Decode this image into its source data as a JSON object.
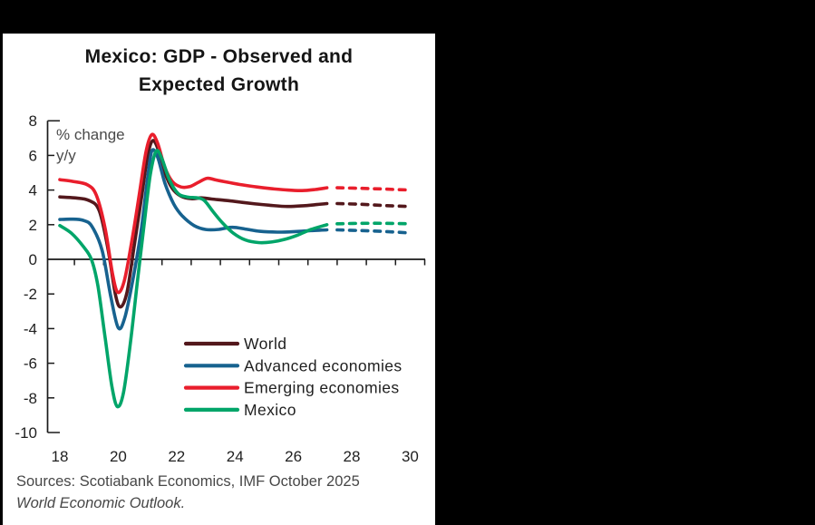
{
  "window": {
    "background": "#000000",
    "panel_background": "#ffffff"
  },
  "header": {
    "title_line1": "Mexico: GDP - Observed and",
    "title_line2": "Expected Growth"
  },
  "axis_note": {
    "line1": "% change",
    "line2": "y/y"
  },
  "footer": {
    "source_line1": "Sources: Scotiabank Economics, IMF October 2025",
    "source_line2": "World Economic Outlook."
  },
  "chart_data": {
    "type": "line",
    "title": "Mexico: GDP - Observed and Expected Growth",
    "ylabel": "% change y/y",
    "xlabel": "",
    "ylim": [
      -10,
      8
    ],
    "xlim": [
      18,
      30.5
    ],
    "yticks": [
      8,
      6,
      4,
      2,
      0,
      -2,
      -4,
      -6,
      -8,
      -10
    ],
    "xticks": [
      18,
      20,
      22,
      24,
      26,
      28,
      30
    ],
    "grid": false,
    "legend_position": "inside-lower-right",
    "axis_color": "#1a1a1a",
    "series": [
      {
        "name": "World",
        "color": "#53181C",
        "solid": [
          [
            18,
            3.6
          ],
          [
            18.5,
            3.55
          ],
          [
            19,
            3.4
          ],
          [
            19.35,
            2.8
          ],
          [
            19.65,
            0.6
          ],
          [
            19.9,
            -2.0
          ],
          [
            20.08,
            -2.75
          ],
          [
            20.3,
            -1.9
          ],
          [
            20.55,
            0.8
          ],
          [
            20.8,
            3.6
          ],
          [
            21.0,
            5.9
          ],
          [
            21.18,
            6.85
          ],
          [
            21.38,
            6.3
          ],
          [
            21.6,
            5.0
          ],
          [
            21.85,
            4.1
          ],
          [
            22.15,
            3.65
          ],
          [
            22.5,
            3.5
          ],
          [
            22.85,
            3.55
          ],
          [
            23.2,
            3.48
          ],
          [
            23.7,
            3.4
          ],
          [
            24.2,
            3.3
          ],
          [
            24.7,
            3.2
          ],
          [
            25.2,
            3.12
          ],
          [
            25.8,
            3.05
          ],
          [
            26.4,
            3.1
          ],
          [
            26.8,
            3.16
          ],
          [
            27.15,
            3.22
          ]
        ],
        "dashed": [
          [
            27.5,
            3.22
          ],
          [
            28.3,
            3.18
          ],
          [
            29.2,
            3.1
          ],
          [
            30,
            3.05
          ]
        ]
      },
      {
        "name": "Advanced economies",
        "color": "#17628F",
        "solid": [
          [
            18,
            2.3
          ],
          [
            18.4,
            2.32
          ],
          [
            18.8,
            2.25
          ],
          [
            19.1,
            1.9
          ],
          [
            19.45,
            0.5
          ],
          [
            19.75,
            -2.2
          ],
          [
            20.0,
            -3.95
          ],
          [
            20.22,
            -3.4
          ],
          [
            20.5,
            -1.2
          ],
          [
            20.78,
            1.6
          ],
          [
            21.0,
            4.6
          ],
          [
            21.15,
            6.25
          ],
          [
            21.35,
            5.9
          ],
          [
            21.6,
            4.4
          ],
          [
            21.9,
            3.2
          ],
          [
            22.2,
            2.5
          ],
          [
            22.6,
            1.95
          ],
          [
            23.0,
            1.72
          ],
          [
            23.45,
            1.73
          ],
          [
            23.9,
            1.85
          ],
          [
            24.35,
            1.75
          ],
          [
            24.85,
            1.62
          ],
          [
            25.45,
            1.57
          ],
          [
            26.05,
            1.6
          ],
          [
            26.6,
            1.66
          ],
          [
            27.15,
            1.7
          ]
        ],
        "dashed": [
          [
            27.5,
            1.7
          ],
          [
            28.3,
            1.66
          ],
          [
            29.2,
            1.6
          ],
          [
            30,
            1.52
          ]
        ]
      },
      {
        "name": "Emerging economies",
        "color": "#E91E2C",
        "solid": [
          [
            18,
            4.6
          ],
          [
            18.45,
            4.5
          ],
          [
            18.95,
            4.3
          ],
          [
            19.25,
            3.7
          ],
          [
            19.55,
            1.8
          ],
          [
            19.8,
            -0.8
          ],
          [
            19.98,
            -1.9
          ],
          [
            20.2,
            -1.3
          ],
          [
            20.45,
            0.9
          ],
          [
            20.7,
            3.5
          ],
          [
            20.95,
            6.2
          ],
          [
            21.15,
            7.2
          ],
          [
            21.35,
            6.7
          ],
          [
            21.6,
            5.3
          ],
          [
            21.85,
            4.5
          ],
          [
            22.15,
            4.18
          ],
          [
            22.45,
            4.2
          ],
          [
            22.75,
            4.45
          ],
          [
            23.05,
            4.68
          ],
          [
            23.35,
            4.58
          ],
          [
            23.75,
            4.45
          ],
          [
            24.25,
            4.3
          ],
          [
            24.75,
            4.18
          ],
          [
            25.25,
            4.08
          ],
          [
            25.8,
            4.0
          ],
          [
            26.3,
            3.97
          ],
          [
            26.75,
            4.03
          ],
          [
            27.15,
            4.13
          ]
        ],
        "dashed": [
          [
            27.5,
            4.13
          ],
          [
            28.3,
            4.1
          ],
          [
            29.2,
            4.05
          ],
          [
            30,
            4.0
          ]
        ]
      },
      {
        "name": "Mexico",
        "color": "#00A569",
        "solid": [
          [
            18,
            1.95
          ],
          [
            18.4,
            1.5
          ],
          [
            18.8,
            0.75
          ],
          [
            19.08,
            0.0
          ],
          [
            19.3,
            -1.5
          ],
          [
            19.55,
            -4.5
          ],
          [
            19.78,
            -7.3
          ],
          [
            19.97,
            -8.5
          ],
          [
            20.18,
            -7.7
          ],
          [
            20.42,
            -4.8
          ],
          [
            20.65,
            -1.4
          ],
          [
            20.9,
            2.2
          ],
          [
            21.1,
            4.9
          ],
          [
            21.3,
            6.25
          ],
          [
            21.5,
            5.8
          ],
          [
            21.75,
            4.6
          ],
          [
            22.05,
            3.8
          ],
          [
            22.35,
            3.6
          ],
          [
            22.7,
            3.55
          ],
          [
            22.95,
            3.4
          ],
          [
            23.25,
            2.75
          ],
          [
            23.6,
            2.05
          ],
          [
            23.95,
            1.5
          ],
          [
            24.35,
            1.12
          ],
          [
            24.8,
            0.97
          ],
          [
            25.25,
            1.0
          ],
          [
            25.7,
            1.15
          ],
          [
            26.15,
            1.4
          ],
          [
            26.6,
            1.72
          ],
          [
            27.15,
            2.0
          ]
        ],
        "dashed": [
          [
            27.5,
            2.05
          ],
          [
            28.3,
            2.08
          ],
          [
            29.2,
            2.08
          ],
          [
            30,
            2.05
          ]
        ]
      }
    ]
  }
}
